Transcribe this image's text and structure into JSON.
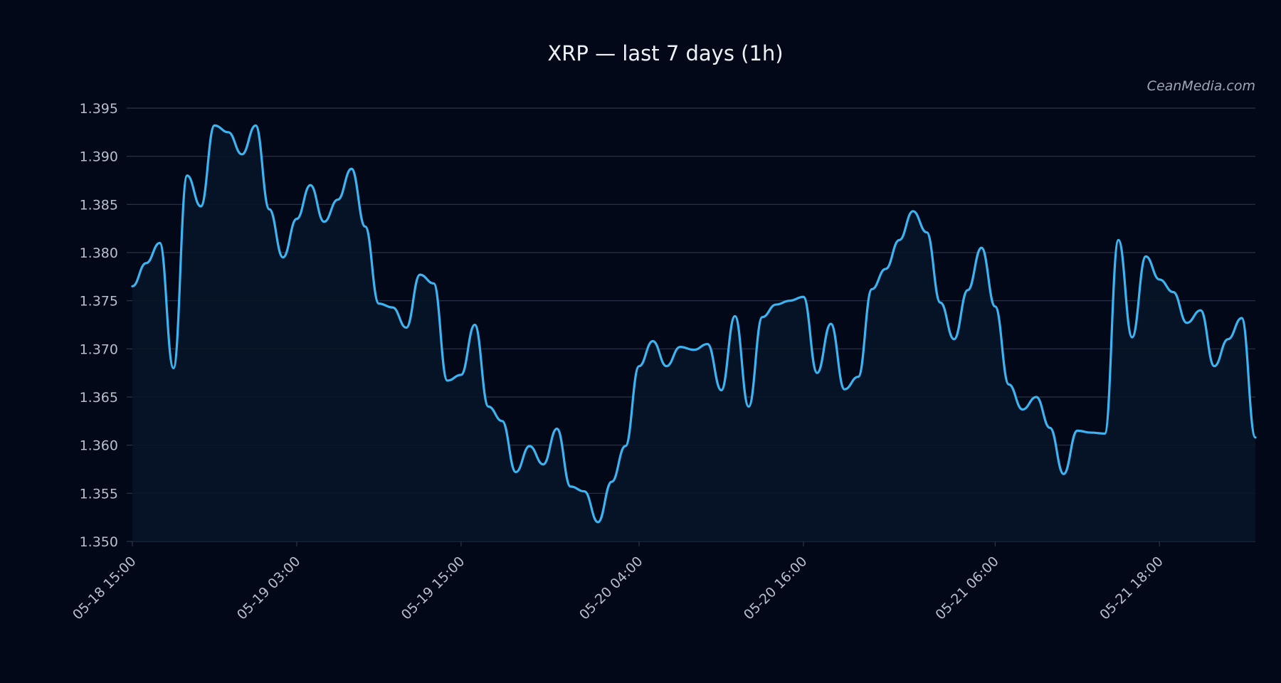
{
  "chart_data": {
    "type": "area",
    "title": "XRP — last 7 days (1h)",
    "watermark": "CeanMedia.com",
    "xlabel": "",
    "ylabel": "",
    "ylim": [
      1.35,
      1.395
    ],
    "yticks": [
      "1.350",
      "1.355",
      "1.360",
      "1.365",
      "1.370",
      "1.375",
      "1.380",
      "1.385",
      "1.390",
      "1.395"
    ],
    "xlim": [
      "05-18 15:00",
      "05-22 01:00"
    ],
    "xticks": [
      "05-18 15:00",
      "05-19 03:00",
      "05-19 15:00",
      "05-20 04:00",
      "05-20 16:00",
      "05-21 06:00",
      "05-21 18:00"
    ],
    "grid": "horizontal",
    "legend": "none",
    "colors": {
      "background": "#030818",
      "line": "#3db4f2",
      "fill": "#071528",
      "grid": "#2a3446",
      "text": "#b8bfca",
      "title": "#eef1f5"
    },
    "series": [
      {
        "points": [
          [
            "05-18 15:00",
            1.3765
          ],
          [
            "05-18 16:00",
            1.3789
          ],
          [
            "05-18 17:00",
            1.381
          ],
          [
            "05-18 18:00",
            1.368
          ],
          [
            "05-18 19:00",
            1.388
          ],
          [
            "05-18 20:00",
            1.3848
          ],
          [
            "05-18 21:00",
            1.3932
          ],
          [
            "05-18 22:00",
            1.3925
          ],
          [
            "05-18 23:00",
            1.3902
          ],
          [
            "05-19 00:00",
            1.3932
          ],
          [
            "05-19 01:00",
            1.3845
          ],
          [
            "05-19 02:00",
            1.3795
          ],
          [
            "05-19 03:00",
            1.3835
          ],
          [
            "05-19 04:00",
            1.387
          ],
          [
            "05-19 05:00",
            1.3832
          ],
          [
            "05-19 06:00",
            1.3855
          ],
          [
            "05-19 07:00",
            1.3887
          ],
          [
            "05-19 08:00",
            1.3827
          ],
          [
            "05-19 09:00",
            1.3747
          ],
          [
            "05-19 10:00",
            1.3743
          ],
          [
            "05-19 11:00",
            1.3722
          ],
          [
            "05-19 12:00",
            1.3777
          ],
          [
            "05-19 13:00",
            1.3768
          ],
          [
            "05-19 14:00",
            1.3667
          ],
          [
            "05-19 15:00",
            1.3673
          ],
          [
            "05-19 16:00",
            1.3725
          ],
          [
            "05-19 17:00",
            1.364
          ],
          [
            "05-19 18:00",
            1.3625
          ],
          [
            "05-19 19:00",
            1.3572
          ],
          [
            "05-19 20:00",
            1.3599
          ],
          [
            "05-19 21:00",
            1.358
          ],
          [
            "05-19 22:00",
            1.3617
          ],
          [
            "05-19 23:00",
            1.3557
          ],
          [
            "05-20 00:00",
            1.3552
          ],
          [
            "05-20 01:00",
            1.352
          ],
          [
            "05-20 02:00",
            1.3562
          ],
          [
            "05-20 03:00",
            1.3599
          ],
          [
            "05-20 04:00",
            1.3682
          ],
          [
            "05-20 05:00",
            1.3708
          ],
          [
            "05-20 06:00",
            1.3682
          ],
          [
            "05-20 07:00",
            1.3702
          ],
          [
            "05-20 08:00",
            1.3699
          ],
          [
            "05-20 09:00",
            1.3705
          ],
          [
            "05-20 10:00",
            1.3657
          ],
          [
            "05-20 11:00",
            1.3734
          ],
          [
            "05-20 12:00",
            1.364
          ],
          [
            "05-20 13:00",
            1.3733
          ],
          [
            "05-20 14:00",
            1.3746
          ],
          [
            "05-20 15:00",
            1.375
          ],
          [
            "05-20 16:00",
            1.3754
          ],
          [
            "05-20 17:00",
            1.3675
          ],
          [
            "05-20 18:00",
            1.3726
          ],
          [
            "05-20 19:00",
            1.3658
          ],
          [
            "05-20 20:00",
            1.3671
          ],
          [
            "05-20 21:00",
            1.3762
          ],
          [
            "05-20 22:00",
            1.3783
          ],
          [
            "05-20 23:00",
            1.3813
          ],
          [
            "05-21 00:00",
            1.3843
          ],
          [
            "05-21 01:00",
            1.3821
          ],
          [
            "05-21 02:00",
            1.3748
          ],
          [
            "05-21 03:00",
            1.371
          ],
          [
            "05-21 04:00",
            1.3761
          ],
          [
            "05-21 05:00",
            1.3805
          ],
          [
            "05-21 06:00",
            1.3744
          ],
          [
            "05-21 07:00",
            1.3663
          ],
          [
            "05-21 08:00",
            1.3637
          ],
          [
            "05-21 09:00",
            1.365
          ],
          [
            "05-21 10:00",
            1.3618
          ],
          [
            "05-21 11:00",
            1.357
          ],
          [
            "05-21 12:00",
            1.3615
          ],
          [
            "05-21 13:00",
            1.3613
          ],
          [
            "05-21 14:00",
            1.3612
          ],
          [
            "05-21 15:00",
            1.3813
          ],
          [
            "05-21 16:00",
            1.3712
          ],
          [
            "05-21 17:00",
            1.3796
          ],
          [
            "05-21 18:00",
            1.3772
          ],
          [
            "05-21 19:00",
            1.3759
          ],
          [
            "05-21 20:00",
            1.3727
          ],
          [
            "05-21 21:00",
            1.374
          ],
          [
            "05-21 22:00",
            1.3682
          ],
          [
            "05-21 23:00",
            1.371
          ],
          [
            "05-22 00:00",
            1.3732
          ],
          [
            "05-22 01:00",
            1.3608
          ]
        ]
      }
    ]
  }
}
